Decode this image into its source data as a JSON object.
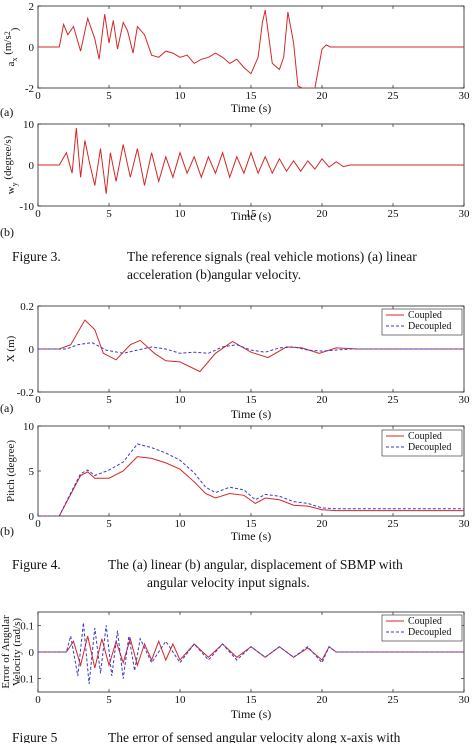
{
  "figure3": {
    "caption_number": "Figure 3.",
    "caption_line1": "The reference signals (real vehicle motions) (a) linear",
    "caption_line2": "acceleration (b)angular velocity."
  },
  "figure4": {
    "caption_number": "Figure 4.",
    "caption_line1": "The (a) linear (b) angular, displacement of SBMP with",
    "caption_line2": "angular velocity input signals."
  },
  "figure5": {
    "caption_number": "Figure 5",
    "caption_line1": "The error of sensed angular velocity along x-axis with"
  },
  "colors": {
    "coupled": "#d62728",
    "decoupled": "#3a3acc",
    "axis": "#222222"
  },
  "chart_data": [
    {
      "id": "fig3a",
      "type": "line",
      "panel_label": "(a)",
      "xlabel": "Time (s)",
      "ylabel": "a_x (m/s^2)",
      "ylabel_main": "a",
      "ylabel_sub": "x",
      "ylabel_unit": "(m/s",
      "ylabel_sup": "2",
      "ylabel_close": ")",
      "xlim": [
        0,
        30
      ],
      "ylim": [
        -2,
        2
      ],
      "xticks": [
        0,
        5,
        10,
        15,
        20,
        25,
        30
      ],
      "yticks": [
        -2,
        0,
        2
      ],
      "series": [
        {
          "key": "coupled",
          "x": [
            0,
            1.5,
            1.8,
            2.1,
            2.5,
            3.0,
            3.5,
            4.0,
            4.3,
            4.7,
            5.0,
            5.3,
            5.6,
            6.0,
            6.3,
            6.7,
            7.0,
            7.5,
            8.0,
            8.5,
            9.0,
            9.5,
            10,
            10.5,
            11,
            11.5,
            12,
            12.5,
            13,
            13.5,
            14,
            14.5,
            15,
            15.5,
            15.8,
            16,
            16.5,
            17,
            17.3,
            17.6,
            18,
            18.3,
            18.6,
            19.0,
            19.5,
            20,
            20.3,
            20.6,
            21,
            22,
            25,
            30
          ],
          "y": [
            0,
            0,
            1.1,
            0.6,
            1.0,
            -0.2,
            1.4,
            0.4,
            -0.6,
            1.6,
            0.2,
            1.3,
            -0.1,
            1.2,
            0.8,
            -0.3,
            1.0,
            0.6,
            -0.4,
            -0.5,
            -0.2,
            -0.3,
            -0.5,
            -0.4,
            -0.8,
            -0.6,
            -0.5,
            -0.3,
            -0.5,
            -0.8,
            -0.6,
            -1.0,
            -1.3,
            -0.5,
            1.2,
            1.8,
            -0.8,
            -1.1,
            -0.5,
            1.7,
            0.2,
            -1.9,
            -2.0,
            -2.0,
            -2.0,
            -0.1,
            0.1,
            0,
            0,
            0,
            0,
            0
          ]
        }
      ]
    },
    {
      "id": "fig3b",
      "type": "line",
      "panel_label": "(b)",
      "xlabel": "Time (s)",
      "ylabel": "w_y (degree/s)",
      "ylabel_main": "w",
      "ylabel_sub": "y",
      "ylabel_unit": "(degree/s)",
      "xlim": [
        0,
        30
      ],
      "ylim": [
        -10,
        10
      ],
      "xticks": [
        0,
        5,
        10,
        15,
        20,
        25,
        30
      ],
      "yticks": [
        -10,
        0,
        10
      ],
      "series": [
        {
          "key": "coupled",
          "x": [
            0,
            1.5,
            2.0,
            2.4,
            2.7,
            3.0,
            3.3,
            3.6,
            4.0,
            4.4,
            4.8,
            5.1,
            5.5,
            6.0,
            6.5,
            7.0,
            7.5,
            8.0,
            8.5,
            9.0,
            9.5,
            10,
            10.5,
            11,
            11.5,
            12,
            12.5,
            13,
            13.5,
            14,
            14.5,
            15,
            15.5,
            16,
            16.5,
            17,
            17.5,
            18,
            18.5,
            19,
            19.5,
            20,
            20.5,
            21,
            21.5,
            22,
            30
          ],
          "y": [
            0,
            0,
            3,
            -2,
            9,
            -3,
            6,
            1,
            -5,
            4,
            -7,
            3,
            -4,
            5,
            -3,
            4,
            -5,
            3,
            -4,
            2,
            -3,
            3,
            -2,
            2,
            -3,
            2,
            -2,
            3,
            -3,
            2,
            -2,
            3,
            -2,
            2,
            -2,
            1.5,
            -1.5,
            1,
            -1.5,
            1,
            -1,
            1.5,
            -0.5,
            0.8,
            -0.4,
            0,
            0
          ]
        }
      ]
    },
    {
      "id": "fig4a",
      "type": "line",
      "panel_label": "(a)",
      "xlabel": "Time (s)",
      "ylabel": "X (m)",
      "xlim": [
        0,
        30
      ],
      "ylim": [
        -0.2,
        0.2
      ],
      "xticks": [
        0,
        5,
        10,
        15,
        20,
        25,
        30
      ],
      "yticks": [
        -0.2,
        0,
        0.2
      ],
      "legend": [
        "Coupled",
        "Decoupled"
      ],
      "legend_position": "top-right",
      "series": [
        {
          "name": "Coupled",
          "key": "coupled",
          "x": [
            0,
            1.5,
            2.3,
            3.3,
            4.0,
            4.6,
            5.5,
            6.5,
            7.2,
            8.2,
            9.0,
            10,
            11.4,
            12.5,
            13.7,
            15.0,
            16.2,
            17.5,
            18.6,
            19.8,
            21,
            22.5,
            24,
            30
          ],
          "y": [
            0,
            0,
            0.02,
            0.135,
            0.09,
            -0.02,
            -0.05,
            0.02,
            0.04,
            -0.02,
            -0.055,
            -0.06,
            -0.105,
            -0.02,
            0.035,
            -0.015,
            -0.04,
            0.01,
            0.005,
            -0.02,
            0.005,
            0,
            0,
            0
          ]
        },
        {
          "name": "Decoupled",
          "key": "decoupled",
          "x": [
            0,
            2,
            2.8,
            3.8,
            4.8,
            6,
            7,
            8,
            9,
            10,
            11,
            12,
            13,
            14,
            15,
            16,
            17,
            18,
            19,
            20,
            22,
            30
          ],
          "y": [
            0,
            0,
            0.02,
            0.03,
            -0.005,
            -0.02,
            -0.005,
            0.01,
            0.0,
            -0.02,
            -0.015,
            -0.02,
            0.01,
            0.02,
            -0.005,
            -0.015,
            0.005,
            0.01,
            -0.005,
            -0.01,
            0,
            0
          ]
        }
      ]
    },
    {
      "id": "fig4b",
      "type": "line",
      "panel_label": "(b)",
      "xlabel": "Time (s)",
      "ylabel": "Pitch (degree)",
      "xlim": [
        0,
        30
      ],
      "ylim": [
        0,
        10
      ],
      "xticks": [
        0,
        5,
        10,
        15,
        20,
        25,
        30
      ],
      "yticks": [
        0,
        5,
        10
      ],
      "legend": [
        "Coupled",
        "Decoupled"
      ],
      "legend_position": "top-right",
      "series": [
        {
          "name": "Coupled",
          "key": "coupled",
          "x": [
            0,
            1.5,
            2,
            3,
            3.5,
            4,
            5,
            6,
            7,
            8,
            9,
            10,
            11,
            11.8,
            12.5,
            13.5,
            14.5,
            15.3,
            16,
            17,
            18,
            19,
            20,
            21,
            30
          ],
          "y": [
            0,
            0,
            1.5,
            4.5,
            4.9,
            4.2,
            4.2,
            5.0,
            6.6,
            6.4,
            5.9,
            5.2,
            3.8,
            2.5,
            2.0,
            2.5,
            2.3,
            1.4,
            2.0,
            1.8,
            1.2,
            1.1,
            0.7,
            0.6,
            0.6
          ]
        },
        {
          "name": "Decoupled",
          "key": "decoupled",
          "x": [
            0,
            1.5,
            2,
            3,
            3.5,
            4,
            5,
            6,
            7,
            8,
            9,
            10,
            11,
            11.8,
            12.5,
            13.5,
            14.5,
            15.3,
            16,
            17,
            18,
            19,
            20,
            21,
            30
          ],
          "y": [
            0,
            0,
            1.6,
            4.7,
            5.1,
            4.5,
            5.1,
            6.0,
            8.0,
            7.6,
            7.0,
            6.2,
            4.8,
            3.2,
            2.6,
            3.2,
            2.9,
            1.8,
            2.4,
            2.2,
            1.6,
            1.4,
            0.9,
            0.8,
            0.8
          ]
        }
      ]
    },
    {
      "id": "fig5",
      "type": "line",
      "xlabel": "Time (s)",
      "ylabel_line1": "Error of Angular",
      "ylabel_line2": "Velocity (rad/s)",
      "xlim": [
        0,
        30
      ],
      "ylim": [
        -0.15,
        0.15
      ],
      "xticks": [
        0,
        5,
        10,
        15,
        20,
        25,
        30
      ],
      "yticks": [
        -0.1,
        0,
        0.1
      ],
      "legend": [
        "Coupled",
        "Decoupled"
      ],
      "legend_position": "top-right",
      "series": [
        {
          "name": "Coupled",
          "key": "coupled",
          "x": [
            0,
            2,
            2.5,
            3,
            3.5,
            4,
            4.5,
            5,
            5.5,
            6,
            6.5,
            7,
            7.5,
            8,
            8.5,
            9,
            9.5,
            10,
            11,
            12,
            13,
            14,
            15,
            16,
            17,
            18,
            19,
            20,
            20.5,
            21,
            30
          ],
          "y": [
            0,
            0,
            0.04,
            -0.05,
            0.06,
            -0.06,
            0.05,
            -0.05,
            0.04,
            -0.04,
            0.05,
            -0.05,
            0.03,
            -0.03,
            0.04,
            -0.03,
            0.03,
            -0.03,
            0.03,
            -0.02,
            0.03,
            -0.02,
            0.02,
            -0.02,
            0.02,
            -0.02,
            0.015,
            -0.03,
            0.02,
            0,
            0
          ]
        },
        {
          "name": "Decoupled",
          "key": "decoupled",
          "x": [
            0,
            2,
            2.3,
            2.8,
            3.2,
            3.6,
            4,
            4.4,
            4.8,
            5.2,
            5.6,
            6,
            6.4,
            6.8,
            7.2,
            8,
            9,
            10,
            11,
            12,
            13,
            14,
            15,
            16,
            17,
            18,
            19,
            20,
            20.5,
            21,
            30
          ],
          "y": [
            0,
            0,
            0.06,
            -0.09,
            0.11,
            -0.12,
            0.09,
            -0.08,
            0.1,
            -0.09,
            0.08,
            -0.1,
            0.06,
            -0.07,
            0.05,
            -0.04,
            0.04,
            -0.04,
            0.03,
            -0.03,
            0.03,
            -0.03,
            0.02,
            -0.02,
            0.02,
            -0.02,
            0.02,
            -0.04,
            0.02,
            0,
            0
          ]
        }
      ]
    }
  ]
}
